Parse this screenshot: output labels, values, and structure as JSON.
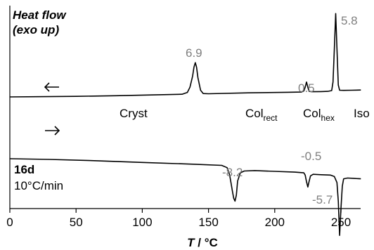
{
  "chart_data": {
    "type": "line",
    "ylabel": [
      "Heat flow",
      "(exo up)"
    ],
    "xlabel": {
      "var": "T",
      "unit": " / °C"
    },
    "xlim": [
      0,
      265
    ],
    "x_ticks": [
      0,
      50,
      100,
      150,
      200,
      250
    ],
    "sample": {
      "name": "16d",
      "rate": "10°C/min"
    },
    "phases": [
      {
        "base": "Cryst",
        "sub": ""
      },
      {
        "base": "Col",
        "sub": "rect"
      },
      {
        "base": "Col",
        "sub": "hex"
      },
      {
        "base": "Iso",
        "sub": ""
      }
    ],
    "series": [
      {
        "direction": "cooling",
        "arrow": "left",
        "x": [
          0,
          20,
          50,
          80,
          110,
          130,
          134,
          136,
          138,
          139,
          140,
          141,
          142,
          144,
          146,
          150,
          180,
          210,
          220,
          222,
          223,
          224,
          225,
          226,
          228,
          235,
          240,
          243,
          244,
          245,
          246,
          247,
          248,
          249,
          252,
          258,
          265
        ],
        "y": [
          0,
          0.03,
          0.08,
          0.16,
          0.27,
          0.36,
          0.6,
          1.3,
          2.8,
          4.0,
          4.6,
          4.0,
          2.6,
          0.9,
          0.45,
          0.42,
          0.55,
          0.62,
          0.65,
          0.8,
          1.3,
          2.0,
          1.3,
          0.75,
          0.7,
          0.72,
          0.75,
          0.85,
          2.0,
          6.5,
          11.2,
          6.5,
          1.6,
          0.9,
          0.88,
          0.9,
          0.92
        ],
        "peaks": [
          {
            "T": 140,
            "label": "6.9",
            "y": 4.6
          },
          {
            "T": 224,
            "label": "0.5",
            "y": 2.0
          },
          {
            "T": 246,
            "label": "5.8",
            "y": 11.2
          }
        ]
      },
      {
        "direction": "heating",
        "arrow": "right",
        "x": [
          0,
          30,
          60,
          100,
          140,
          160,
          164,
          166,
          168,
          169,
          170,
          171,
          172,
          174,
          177,
          185,
          200,
          215,
          222,
          223,
          224,
          225,
          226,
          227,
          229,
          235,
          242,
          245,
          247,
          248,
          249,
          250,
          251,
          252,
          255,
          260,
          265
        ],
        "y": [
          -8.3,
          -8.4,
          -8.55,
          -8.8,
          -9.05,
          -9.2,
          -9.5,
          -10.5,
          -12.6,
          -13.6,
          -14.0,
          -13.2,
          -11.3,
          -10.2,
          -9.95,
          -9.9,
          -10.0,
          -10.1,
          -10.2,
          -10.5,
          -11.4,
          -12.1,
          -11.3,
          -10.6,
          -10.4,
          -10.45,
          -10.5,
          -10.7,
          -11.5,
          -14.0,
          -18.6,
          -15.0,
          -12.0,
          -11.0,
          -10.9,
          -10.95,
          -11.0
        ],
        "peaks": [
          {
            "T": 170,
            "label": "-8.2",
            "y": -14.0
          },
          {
            "T": 225,
            "label": "-0.5",
            "y": -12.1
          },
          {
            "T": 249,
            "label": "-5.7",
            "y": -18.6
          }
        ]
      }
    ]
  }
}
